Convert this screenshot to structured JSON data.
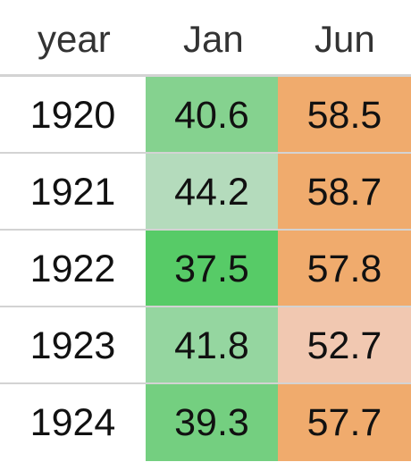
{
  "table": {
    "headers": [
      "year",
      "Jan",
      "Jun"
    ],
    "rows": [
      {
        "year": "1920",
        "jan": "40.6",
        "jun": "58.5",
        "jan_color": "#85d28f",
        "jun_color": "#f0ab6d"
      },
      {
        "year": "1921",
        "jan": "44.2",
        "jun": "58.7",
        "jan_color": "#b4dbbc",
        "jun_color": "#f0ab6d"
      },
      {
        "year": "1922",
        "jan": "37.5",
        "jun": "57.8",
        "jan_color": "#57cb67",
        "jun_color": "#f0ab6d"
      },
      {
        "year": "1923",
        "jan": "41.8",
        "jun": "52.7",
        "jan_color": "#95d6a0",
        "jun_color": "#f1c8b1"
      },
      {
        "year": "1924",
        "jan": "39.3",
        "jun": "57.7",
        "jan_color": "#74cf80",
        "jun_color": "#f0ab6d"
      }
    ]
  }
}
